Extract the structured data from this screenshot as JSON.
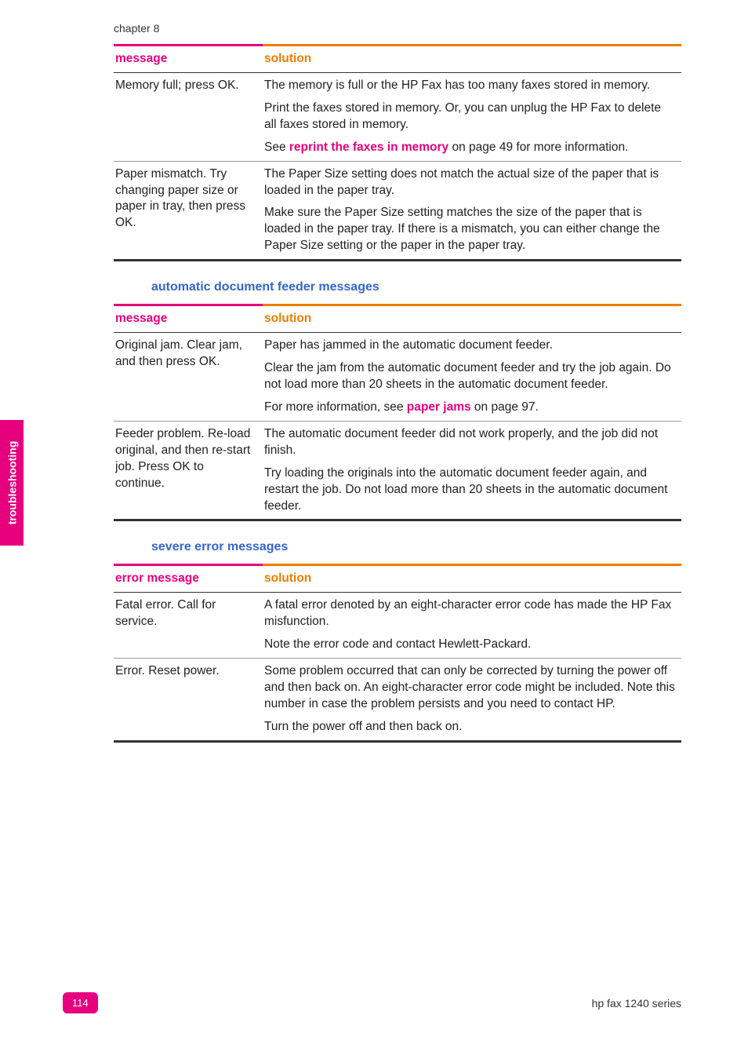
{
  "chapter_label": "chapter 8",
  "side_tab": "troubleshooting",
  "table1": {
    "header_msg": "message",
    "header_sol": "solution",
    "rows": [
      {
        "msg": "Memory full; press OK.",
        "sol_p1": "The memory is full or the HP Fax has too many faxes stored in memory.",
        "sol_p2": "Print the faxes stored in memory. Or, you can unplug the HP Fax to delete all faxes stored in memory.",
        "sol_p3_pre": "See ",
        "sol_p3_link": "reprint the faxes in memory",
        "sol_p3_post": " on page 49 for more information."
      },
      {
        "msg": "Paper mismatch. Try changing paper size or paper in tray, then press OK.",
        "sol_p1": "The Paper Size setting does not match the actual size of the paper that is loaded in the paper tray.",
        "sol_p2": "Make sure the Paper Size setting matches the size of the paper that is loaded in the paper tray. If there is a mismatch, you can either change the Paper Size setting or the paper in the paper tray."
      }
    ]
  },
  "section2_title": "automatic document feeder messages",
  "table2": {
    "header_msg": "message",
    "header_sol": "solution",
    "rows": [
      {
        "msg": "Original jam. Clear jam, and then press OK.",
        "sol_p1": "Paper has jammed in the automatic document feeder.",
        "sol_p2": "Clear the jam from the automatic document feeder and try the job again. Do not load more than 20 sheets in the automatic document feeder.",
        "sol_p3_pre": "For more information, see ",
        "sol_p3_link": "paper jams",
        "sol_p3_post": " on page 97."
      },
      {
        "msg": "Feeder problem. Re-load original, and then re-start job. Press OK to continue.",
        "sol_p1": "The automatic document feeder did not work properly, and the job did not finish.",
        "sol_p2": "Try loading the originals into the automatic document feeder again, and restart the job. Do not load more than 20 sheets in the automatic document feeder."
      }
    ]
  },
  "section3_title": "severe error messages",
  "table3": {
    "header_msg": "error message",
    "header_sol": "solution",
    "rows": [
      {
        "msg": "Fatal error. Call for service.",
        "sol_p1": "A fatal error denoted by an eight-character error code has made the HP Fax misfunction.",
        "sol_p2": "Note the error code and contact Hewlett-Packard."
      },
      {
        "msg": "Error. Reset power.",
        "sol_p1": "Some problem occurred that can only be corrected by turning the power off and then back on. An eight-character error code might be included. Note this number in case the problem persists and you need to contact HP.",
        "sol_p2": "Turn the power off and then back on."
      }
    ]
  },
  "page_number": "114",
  "footer_right": "hp fax 1240 series",
  "colors": {
    "magenta": "#e6007e",
    "orange": "#ed7d00",
    "blue": "#3366cc"
  }
}
